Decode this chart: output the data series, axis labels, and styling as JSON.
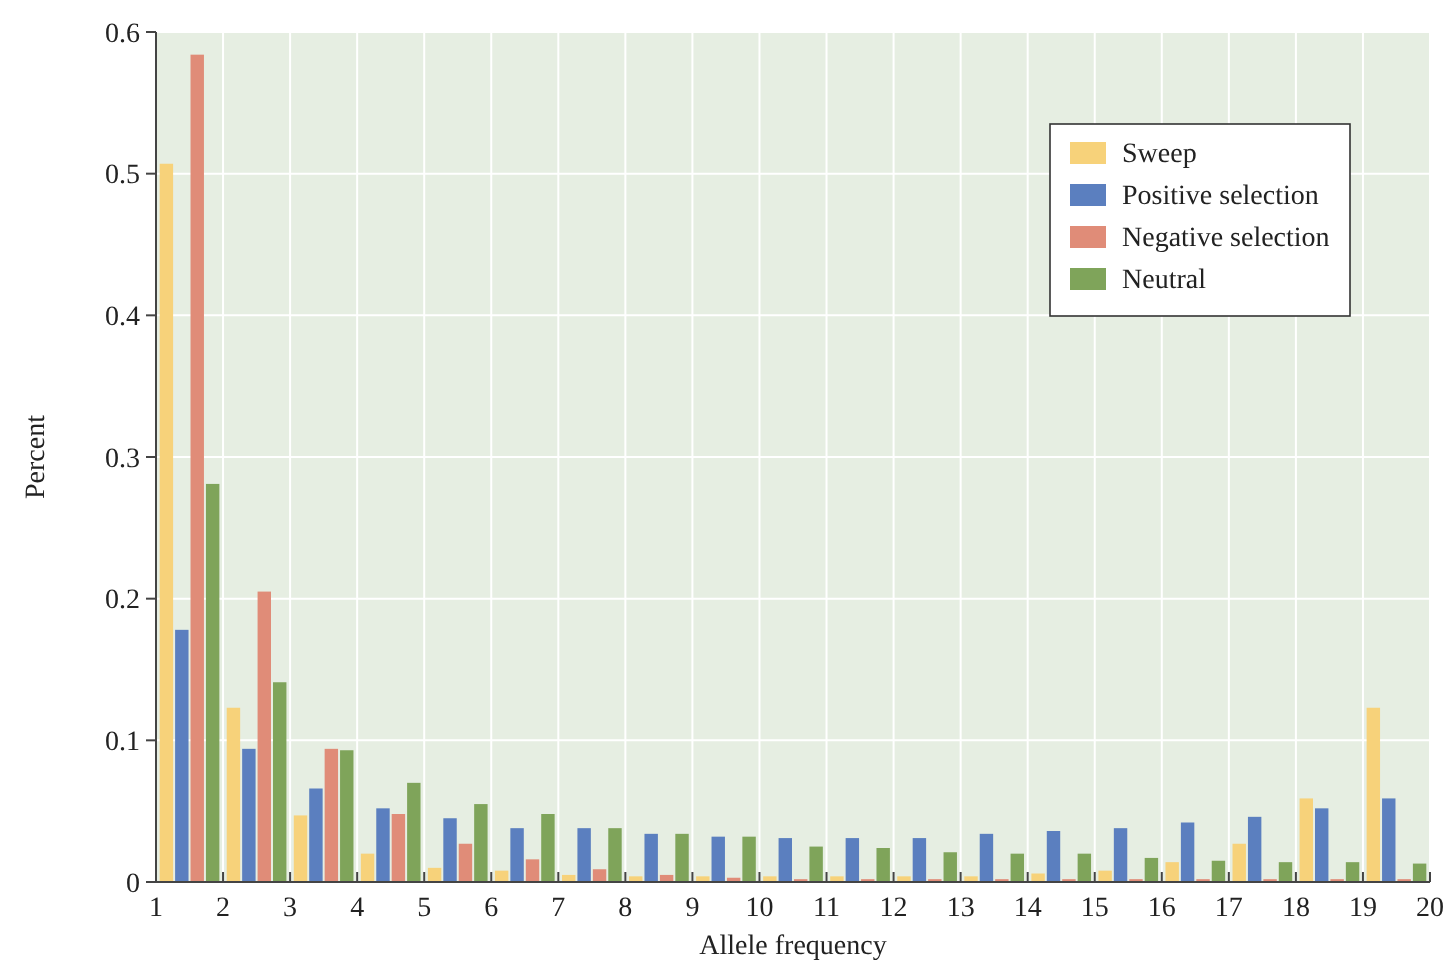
{
  "chart_data": {
    "type": "bar",
    "xlabel": "Allele frequency",
    "ylabel": "Percent",
    "x": [
      1.5,
      2.5,
      3.5,
      4.5,
      5.5,
      6.5,
      7.5,
      8.5,
      9.5,
      10.5,
      11.5,
      12.5,
      13.5,
      14.5,
      15.5,
      16.5,
      17.5,
      18.5,
      19.5
    ],
    "series": [
      {
        "name": "Sweep",
        "color": "#f7d27a",
        "values": [
          0.507,
          0.123,
          0.047,
          0.02,
          0.01,
          0.008,
          0.005,
          0.004,
          0.004,
          0.004,
          0.004,
          0.004,
          0.004,
          0.006,
          0.008,
          0.014,
          0.027,
          0.059,
          0.123
        ]
      },
      {
        "name": "Positive selection",
        "color": "#5b7fbf",
        "values": [
          0.178,
          0.094,
          0.066,
          0.052,
          0.045,
          0.038,
          0.038,
          0.034,
          0.032,
          0.031,
          0.031,
          0.031,
          0.034,
          0.036,
          0.038,
          0.042,
          0.046,
          0.052,
          0.059
        ]
      },
      {
        "name": "Negative selection",
        "color": "#e08c78",
        "values": [
          0.584,
          0.205,
          0.094,
          0.048,
          0.027,
          0.016,
          0.009,
          0.005,
          0.003,
          0.002,
          0.002,
          0.002,
          0.002,
          0.002,
          0.002,
          0.002,
          0.002,
          0.002,
          0.002
        ]
      },
      {
        "name": "Neutral",
        "color": "#7fa45a",
        "values": [
          0.281,
          0.141,
          0.093,
          0.07,
          0.055,
          0.048,
          0.038,
          0.034,
          0.032,
          0.025,
          0.024,
          0.021,
          0.02,
          0.02,
          0.017,
          0.015,
          0.014,
          0.014,
          0.013
        ]
      }
    ],
    "xlim": [
      1,
      20
    ],
    "xticks": [
      1,
      2,
      3,
      4,
      5,
      6,
      7,
      8,
      9,
      10,
      11,
      12,
      13,
      14,
      15,
      16,
      17,
      18,
      19,
      20
    ],
    "ylim": [
      0,
      0.6
    ],
    "yticks": [
      0,
      0.1,
      0.2,
      0.3,
      0.4,
      0.5,
      0.6
    ],
    "grid": true,
    "legend": "top right"
  }
}
